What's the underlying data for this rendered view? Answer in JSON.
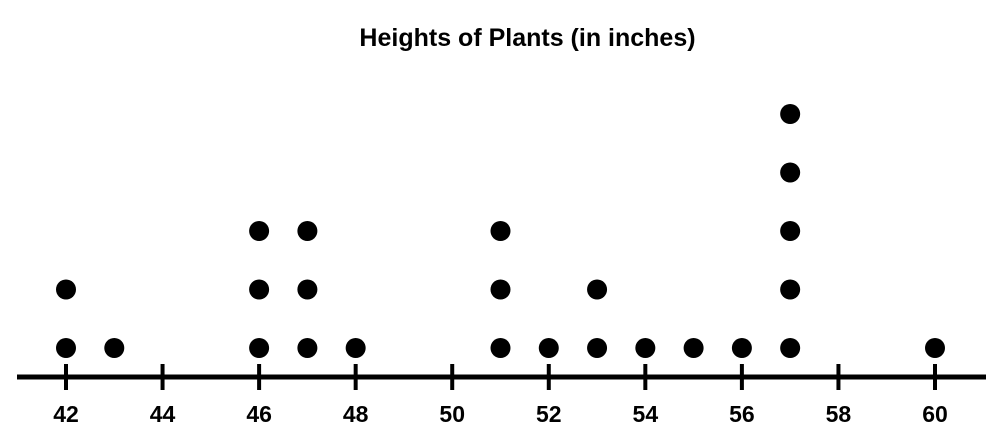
{
  "chart_data": {
    "type": "dot_plot",
    "title": "Heights of Plants (in inches)",
    "xlabel": "",
    "ylabel": "",
    "xlim": [
      41,
      61
    ],
    "ticks": [
      42,
      44,
      46,
      48,
      50,
      52,
      54,
      56,
      58,
      60
    ],
    "tick_labels": [
      "42",
      "44",
      "46",
      "48",
      "50",
      "52",
      "54",
      "56",
      "58",
      "60"
    ],
    "values": [
      42,
      43,
      46,
      47,
      48,
      51,
      52,
      53,
      54,
      55,
      56,
      57,
      60
    ],
    "counts": [
      2,
      1,
      3,
      3,
      1,
      3,
      1,
      2,
      1,
      1,
      1,
      5,
      1
    ],
    "grid": false,
    "colors": {
      "dot": "#000000",
      "axis": "#000000",
      "text": "#000000"
    }
  }
}
